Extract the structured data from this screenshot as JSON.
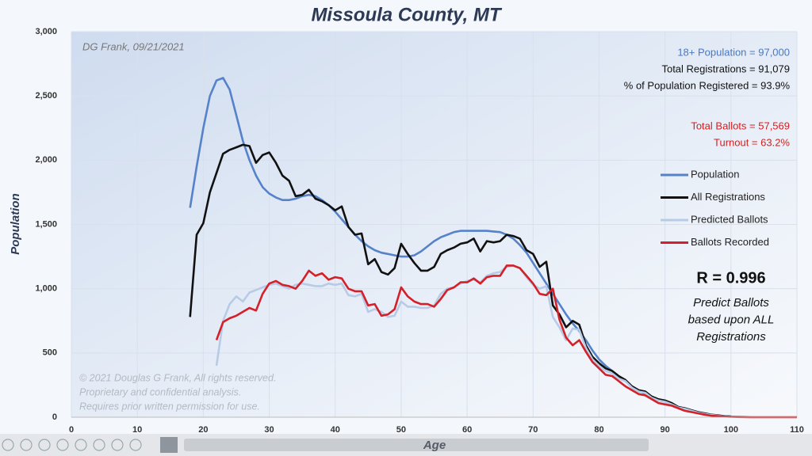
{
  "chart_data": {
    "type": "line",
    "title": "Missoula County, MT",
    "subtitle": "DG Frank, 09/21/2021",
    "xlabel": "Age",
    "ylabel": "Population",
    "xlim": [
      0,
      110
    ],
    "ylim": [
      0,
      3000
    ],
    "xticks": [
      0,
      10,
      20,
      30,
      40,
      50,
      60,
      70,
      80,
      90,
      100,
      110
    ],
    "yticks": [
      0,
      500,
      {
        "value": 1000,
        "label": "1,000"
      },
      {
        "value": 1500,
        "label": "1,500"
      },
      {
        "value": 2000,
        "label": "2,000"
      },
      {
        "value": 2500,
        "label": "2,500"
      },
      {
        "value": 3000,
        "label": "3,000"
      }
    ],
    "grid": true,
    "legend": "right",
    "annotations": [
      {
        "text": "18+ Population = 97,000",
        "color": "#4a78c0"
      },
      {
        "text": "Total Registrations = 91,079",
        "color": "#111111"
      },
      {
        "text": "% of Population Registered = 93.9%",
        "color": "#111111"
      },
      {
        "text": "Total Ballots = 57,569",
        "color": "#d42020"
      },
      {
        "text": "Turnout = 63.2%",
        "color": "#d42020"
      }
    ],
    "r_text": "R = 0.996",
    "note_lines": [
      "Predict Ballots",
      "based upon ALL",
      "Registrations"
    ],
    "copyright_lines": [
      "© 2021 Douglas G Frank, All rights reserved.",
      "Proprietary and confidential analysis.",
      "Requires prior written permission for use."
    ],
    "x": [
      18,
      19,
      20,
      21,
      22,
      23,
      24,
      25,
      26,
      27,
      28,
      29,
      30,
      31,
      32,
      33,
      34,
      35,
      36,
      37,
      38,
      39,
      40,
      41,
      42,
      43,
      44,
      45,
      46,
      47,
      48,
      49,
      50,
      51,
      52,
      53,
      54,
      55,
      56,
      57,
      58,
      59,
      60,
      61,
      62,
      63,
      64,
      65,
      66,
      67,
      68,
      69,
      70,
      71,
      72,
      73,
      74,
      75,
      76,
      77,
      78,
      79,
      80,
      81,
      82,
      83,
      84,
      85,
      86,
      87,
      88,
      89,
      90,
      91,
      92,
      93,
      94,
      95,
      96,
      97,
      98,
      99,
      100,
      101,
      102,
      103,
      104,
      105,
      106,
      107,
      108,
      109,
      110
    ],
    "series": [
      {
        "name": "Population",
        "color": "#5582c8",
        "values": [
          1630,
          1950,
          2250,
          2500,
          2620,
          2640,
          2550,
          2350,
          2150,
          2000,
          1880,
          1790,
          1740,
          1710,
          1690,
          1690,
          1700,
          1720,
          1730,
          1720,
          1690,
          1650,
          1600,
          1540,
          1480,
          1420,
          1370,
          1330,
          1300,
          1280,
          1270,
          1260,
          1250,
          1250,
          1260,
          1290,
          1330,
          1370,
          1400,
          1420,
          1440,
          1450,
          1450,
          1450,
          1450,
          1450,
          1445,
          1440,
          1420,
          1390,
          1340,
          1280,
          1200,
          1120,
          1040,
          960,
          880,
          800,
          730,
          670,
          600,
          520,
          450,
          400,
          360,
          320,
          280,
          240,
          210,
          180,
          160,
          140,
          120,
          100,
          80,
          65,
          50,
          40,
          30,
          20,
          12,
          8,
          5,
          null,
          null,
          null,
          null,
          null,
          null,
          null,
          null,
          null,
          null
        ]
      },
      {
        "name": "All Registrations",
        "color": "#111111",
        "values": [
          780,
          1420,
          1510,
          1750,
          1900,
          2050,
          2080,
          2100,
          2120,
          2110,
          1980,
          2040,
          2060,
          1980,
          1880,
          1840,
          1720,
          1730,
          1770,
          1700,
          1680,
          1650,
          1610,
          1640,
          1480,
          1420,
          1430,
          1190,
          1230,
          1130,
          1110,
          1160,
          1350,
          1270,
          1200,
          1140,
          1140,
          1170,
          1270,
          1300,
          1320,
          1350,
          1360,
          1390,
          1290,
          1370,
          1360,
          1370,
          1420,
          1410,
          1390,
          1300,
          1270,
          1170,
          1210,
          870,
          800,
          700,
          750,
          720,
          560,
          470,
          420,
          380,
          360,
          320,
          290,
          240,
          210,
          200,
          160,
          140,
          130,
          110,
          80,
          70,
          55,
          40,
          30,
          20,
          15,
          8,
          5,
          null,
          null,
          null,
          null,
          null,
          null,
          null,
          null,
          null,
          null
        ]
      },
      {
        "name": "Predicted Ballots",
        "color": "#b7cbe6",
        "values": [
          null,
          null,
          null,
          null,
          400,
          750,
          880,
          940,
          900,
          970,
          990,
          1010,
          1030,
          1040,
          1020,
          1000,
          1030,
          1040,
          1030,
          1020,
          1020,
          1040,
          1030,
          1040,
          950,
          940,
          960,
          820,
          840,
          820,
          780,
          790,
          900,
          860,
          860,
          850,
          850,
          870,
          960,
          1000,
          1010,
          1040,
          1060,
          1070,
          1050,
          1100,
          1120,
          1130,
          1170,
          1180,
          1160,
          1090,
          1030,
          1000,
          1020,
          780,
          700,
          600,
          690,
          680,
          540,
          450,
          400,
          360,
          340,
          300,
          280,
          230,
          200,
          190,
          150,
          130,
          120,
          100,
          75,
          65,
          50,
          35,
          25,
          18,
          12,
          7,
          4,
          null,
          null,
          null,
          null,
          null,
          null,
          null,
          null,
          null,
          null
        ]
      },
      {
        "name": "Ballots Recorded",
        "color": "#d42028",
        "values": [
          null,
          null,
          null,
          null,
          600,
          740,
          770,
          790,
          820,
          850,
          830,
          960,
          1040,
          1060,
          1030,
          1020,
          1000,
          1060,
          1140,
          1100,
          1120,
          1070,
          1090,
          1080,
          1000,
          980,
          980,
          870,
          880,
          790,
          800,
          840,
          1010,
          940,
          900,
          880,
          880,
          860,
          920,
          990,
          1010,
          1050,
          1050,
          1080,
          1040,
          1090,
          1100,
          1100,
          1180,
          1180,
          1160,
          1100,
          1040,
          960,
          950,
          1000,
          760,
          620,
          560,
          600,
          510,
          430,
          380,
          330,
          320,
          280,
          240,
          210,
          180,
          170,
          140,
          110,
          100,
          90,
          70,
          50,
          40,
          30,
          20,
          12,
          8,
          5,
          3,
          2,
          1,
          0,
          0,
          0,
          0,
          0,
          0,
          0,
          0
        ]
      }
    ]
  }
}
